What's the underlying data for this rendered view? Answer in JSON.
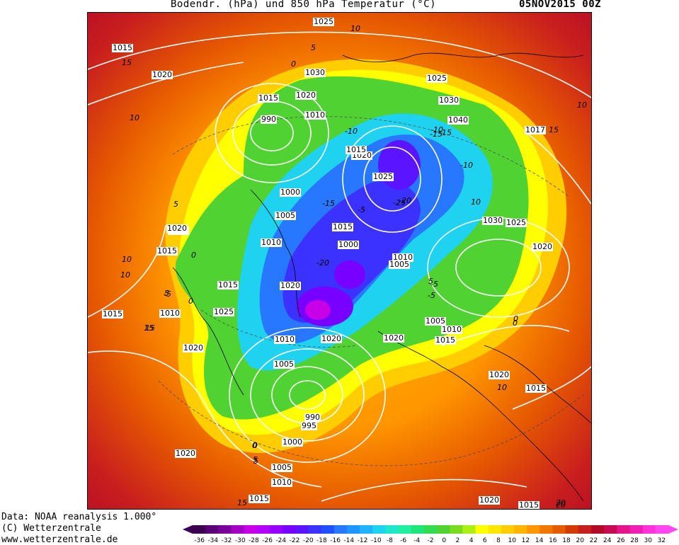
{
  "header": {
    "title": "Bodendr. (hPa) und 850 hPa Temperatur (°C)",
    "date": "05NOV2015 00Z"
  },
  "footer": {
    "line1": "Data: NOAA reanalysis 1.000°",
    "line2": "(C) Wetterzentrale",
    "line3": "www.wetterzentrale.de"
  },
  "isobar_labels": [
    "1025",
    "1015",
    "1020",
    "1030",
    "1025",
    "1030",
    "1040",
    "1015",
    "990",
    "1010",
    "1020",
    "1020",
    "1025",
    "1015",
    "1000",
    "1005",
    "1015",
    "1000",
    "1010",
    "1005",
    "1015",
    "1020",
    "1010",
    "1025",
    "1020",
    "1015",
    "1005",
    "1010",
    "1015",
    "1020",
    "1005",
    "1015",
    "1010",
    "1020",
    "990",
    "995",
    "1000",
    "1005",
    "1010",
    "1015",
    "1020",
    "1015",
    "1017",
    "1020",
    "1030",
    "1025",
    "1020",
    "1015",
    "1020",
    "1020",
    "1015",
    "1015",
    "1010"
  ],
  "temperature_labels": [
    "10",
    "5",
    "15",
    "10",
    "0",
    "0",
    "-10",
    "-15",
    "-5",
    "-20",
    "-15",
    "-10",
    "10",
    "5",
    "10",
    "15",
    "10",
    "0",
    "-5",
    "-20",
    "-5",
    "-15",
    "0",
    "5",
    "-25",
    "5",
    "0",
    "10",
    "15",
    "20",
    "-5",
    "0",
    "5",
    "10",
    "-10",
    "15",
    "20",
    "0",
    "5",
    "15",
    "20"
  ],
  "legend": {
    "colors": [
      "#3b0050",
      "#5a0078",
      "#7a009a",
      "#a300c8",
      "#c800e8",
      "#b400ff",
      "#9600ff",
      "#7800ff",
      "#5a14ff",
      "#3c32ff",
      "#1e50ff",
      "#2878ff",
      "#1e96ff",
      "#1eb4ff",
      "#1ed2f0",
      "#1ee6c8",
      "#1ef0a0",
      "#1ee678",
      "#32dc50",
      "#50d232",
      "#78dc1e",
      "#aaf014",
      "#ffff00",
      "#ffe600",
      "#ffcd00",
      "#ffb400",
      "#ff9600",
      "#f07800",
      "#e65a00",
      "#d23c00",
      "#c81e1e",
      "#b40a28",
      "#c80a50",
      "#e6148c",
      "#f01eb4",
      "#ff32dc",
      "#ff46f0"
    ],
    "ticks": [
      "-36",
      "-34",
      "-32",
      "-30",
      "-28",
      "-26",
      "-24",
      "-22",
      "-20",
      "-18",
      "-16",
      "-14",
      "-12",
      "-10",
      "-8",
      "-6",
      "-4",
      "-2",
      "0",
      "2",
      "4",
      "6",
      "8",
      "10",
      "12",
      "14",
      "16",
      "18",
      "20",
      "22",
      "24",
      "26",
      "28",
      "30",
      "32"
    ]
  }
}
